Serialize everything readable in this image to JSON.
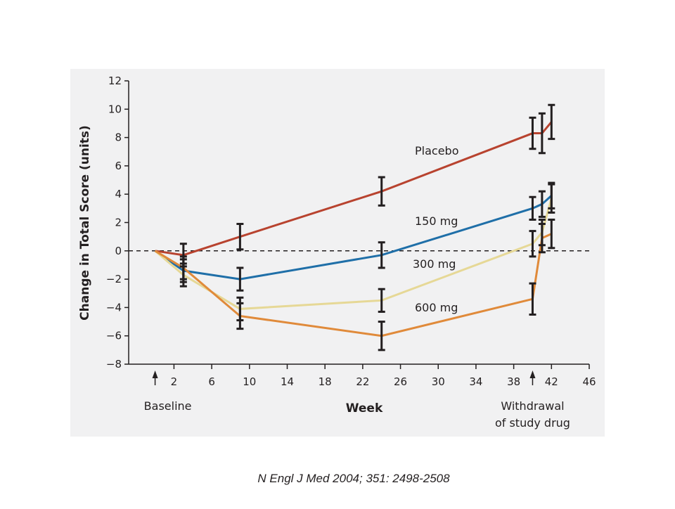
{
  "chart_data": {
    "type": "line",
    "ylabel": "Change in Total Score  (units)",
    "xlabel": "Week",
    "x": [
      0,
      3,
      9,
      24,
      40,
      41,
      42
    ],
    "series": [
      {
        "name": "Placebo",
        "color": "#b8432f",
        "values": [
          0,
          -0.3,
          1.0,
          4.2,
          8.3,
          8.3,
          9.1
        ],
        "errors": [
          null,
          0.8,
          0.9,
          1.0,
          1.1,
          1.4,
          1.2
        ]
      },
      {
        "name": "150 mg",
        "color": "#1f6fa8",
        "values": [
          0,
          -1.4,
          -2.0,
          -0.3,
          3.0,
          3.3,
          3.9
        ],
        "errors": [
          null,
          0.8,
          0.8,
          0.9,
          0.8,
          0.9,
          0.9
        ]
      },
      {
        "name": "300 mg",
        "color": "#e6d896",
        "values": [
          0,
          -1.7,
          -4.1,
          -3.5,
          0.5,
          1.3,
          3.7
        ],
        "errors": [
          null,
          0.8,
          0.8,
          0.8,
          0.9,
          0.9,
          1.0
        ]
      },
      {
        "name": "600 mg",
        "color": "#e08a3a",
        "values": [
          0,
          -1.2,
          -4.6,
          -6.0,
          -3.4,
          0.9,
          1.2
        ],
        "errors": [
          null,
          0.8,
          0.9,
          1.0,
          1.1,
          1.0,
          1.0
        ]
      }
    ],
    "xlim": [
      -2.8,
      46
    ],
    "xticks": [
      2,
      6,
      10,
      14,
      18,
      22,
      26,
      30,
      34,
      38,
      42,
      46
    ],
    "ylim": [
      -8,
      12
    ],
    "yticks": [
      {
        "value": -8,
        "label": "−8"
      },
      {
        "value": -6,
        "label": "−6"
      },
      {
        "value": -4,
        "label": "−4"
      },
      {
        "value": -2,
        "label": "−2"
      },
      0,
      2,
      4,
      6,
      8,
      10,
      12
    ],
    "zero_line": true,
    "annotations": [
      {
        "text": [
          "Baseline"
        ],
        "x": 0
      },
      {
        "text": [
          "Withdrawal",
          "of study drug"
        ],
        "x": 40
      }
    ]
  },
  "caption": "N Engl J Med 2004; 351: 2498-2508"
}
